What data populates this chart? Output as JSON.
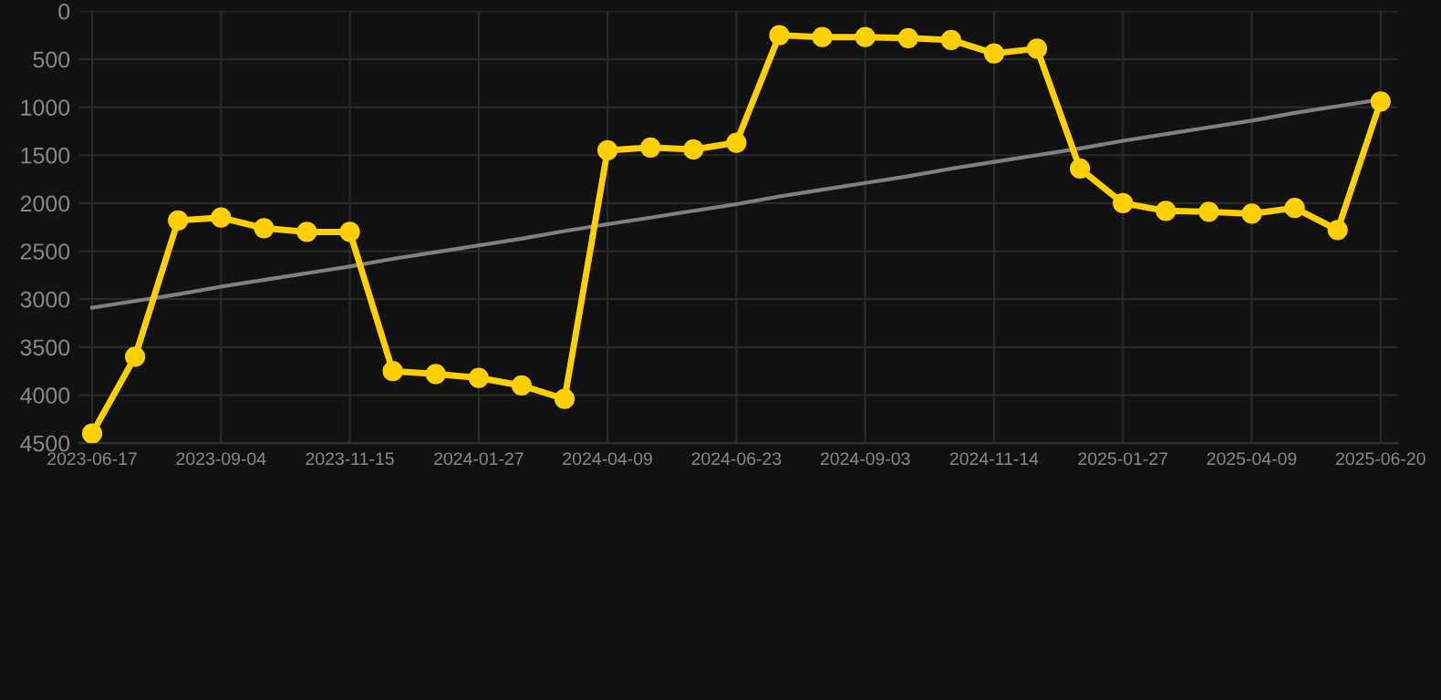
{
  "chart_data": {
    "type": "line",
    "categories": [
      "2023-06-17",
      null,
      null,
      "2023-09-04",
      null,
      null,
      "2023-11-15",
      null,
      null,
      "2024-01-27",
      null,
      null,
      "2024-04-09",
      null,
      null,
      "2024-06-23",
      null,
      null,
      "2024-09-03",
      null,
      null,
      "2024-11-14",
      null,
      null,
      "2025-01-27",
      null,
      null,
      "2025-04-09",
      null,
      null,
      "2025-06-20"
    ],
    "series": [
      {
        "color": "#ffd000",
        "marker": "circle",
        "values": [
          4400,
          3600,
          2180,
          2150,
          2260,
          2300,
          2300,
          3750,
          3780,
          3820,
          3900,
          4040,
          1450,
          1420,
          1440,
          1370,
          250,
          270,
          270,
          280,
          300,
          440,
          390,
          1640,
          2000,
          2080,
          2090,
          2110,
          2050,
          2280,
          940
        ]
      },
      {
        "type": "line",
        "color": "#808080",
        "marker": "none",
        "values": [
          3090,
          3020,
          2950,
          2870,
          2800,
          2730,
          2660,
          2580,
          2510,
          2440,
          2370,
          2290,
          2220,
          2150,
          2080,
          2010,
          1930,
          1860,
          1790,
          1720,
          1640,
          1570,
          1500,
          1430,
          1350,
          1280,
          1210,
          1140,
          1060,
          990,
          920
        ]
      }
    ],
    "ylim": [
      4500,
      0
    ],
    "yticks": [
      0,
      500,
      1000,
      1500,
      2000,
      2500,
      3000,
      3500,
      4000,
      4500
    ],
    "grid": true,
    "line_style": "solid"
  }
}
